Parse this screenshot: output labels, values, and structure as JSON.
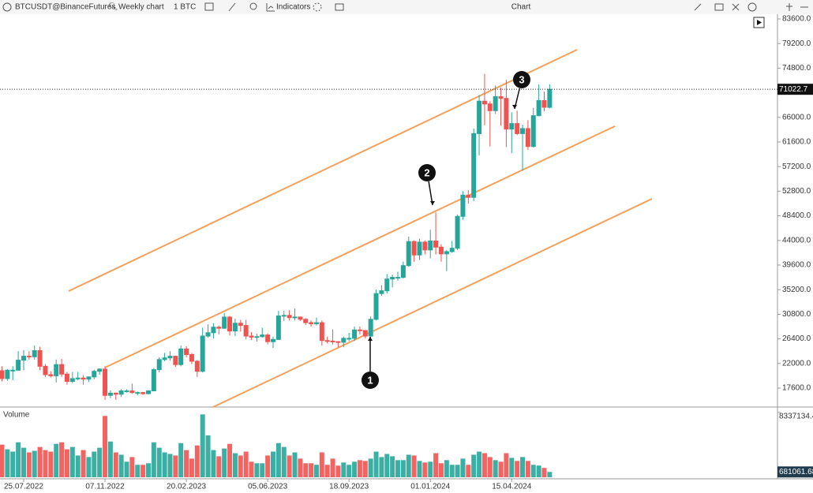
{
  "toolbar": {
    "symbol": "BTCUSDT@BinanceFutures",
    "interval": "Weekly chart",
    "quantity": "1 BTC",
    "indicators": "Indicators",
    "window_title": "Chart"
  },
  "chart_data": {
    "type": "candlestick",
    "categories": [
      null,
      null,
      null,
      null,
      "25.07.2022",
      null,
      null,
      null,
      null,
      null,
      null,
      null,
      null,
      null,
      null,
      null,
      null,
      null,
      null,
      "07.11.2022",
      null,
      null,
      null,
      null,
      null,
      null,
      null,
      null,
      null,
      null,
      null,
      null,
      null,
      null,
      "20.02.2023",
      null,
      null,
      null,
      null,
      null,
      null,
      null,
      null,
      null,
      null,
      null,
      null,
      null,
      null,
      "05.06.2023",
      null,
      null,
      null,
      null,
      null,
      null,
      null,
      null,
      null,
      null,
      null,
      null,
      null,
      null,
      "18.09.2023",
      null,
      null,
      null,
      null,
      null,
      null,
      null,
      null,
      null,
      null,
      null,
      null,
      null,
      null,
      "01.01.2024",
      null,
      null,
      null,
      null,
      null,
      null,
      null,
      null,
      null,
      null,
      null,
      null,
      null,
      null,
      "15.04.2024",
      null,
      null,
      null,
      null,
      null,
      null,
      null
    ],
    "open": [
      20700,
      19300,
      20800,
      20800,
      22600,
      23300,
      23200,
      24300,
      21500,
      20000,
      19800,
      21800,
      20100,
      18800,
      19300,
      19400,
      19200,
      19600,
      20600,
      21000,
      16300,
      16700,
      16500,
      17100,
      17100,
      16800,
      16800,
      16600,
      17100,
      20900,
      22700,
      23000,
      23300,
      21800,
      24600,
      23600,
      22400,
      20600,
      26900,
      27500,
      28500,
      28300,
      30300,
      27800,
      29200,
      28800,
      26900,
      26700,
      26800,
      27100,
      25900,
      26300,
      30500,
      30600,
      30200,
      30300,
      29900,
      29300,
      29100,
      29300,
      26100,
      26000,
      25900,
      25800,
      26500,
      26500,
      28000,
      27900,
      26900,
      29900,
      34500,
      35000,
      37100,
      37400,
      37400,
      39500,
      43800,
      41400,
      43700,
      42300,
      43900,
      42800,
      41600,
      42000,
      42600,
      48300,
      52100,
      51700,
      63100,
      68900,
      68400,
      67200,
      69700,
      69400,
      63900,
      64900,
      63100,
      64000,
      60800,
      66300,
      69000,
      67800
    ],
    "high": [
      21500,
      21000,
      21500,
      24200,
      24400,
      24200,
      25200,
      25000,
      21900,
      20600,
      22700,
      22800,
      20500,
      20500,
      20500,
      19900,
      19700,
      20900,
      21100,
      21500,
      17200,
      16800,
      17400,
      17400,
      18400,
      17000,
      16900,
      17200,
      21200,
      23100,
      23900,
      24200,
      23400,
      25200,
      25100,
      23900,
      22600,
      28400,
      29000,
      29200,
      28800,
      31000,
      30500,
      30000,
      29800,
      29800,
      27600,
      27300,
      28400,
      27400,
      26800,
      31400,
      31400,
      31500,
      31800,
      30400,
      30100,
      29700,
      30200,
      29700,
      26800,
      28100,
      26000,
      26800,
      27500,
      28600,
      28600,
      27900,
      30400,
      35200,
      36000,
      38000,
      37900,
      38400,
      40200,
      44700,
      44000,
      44300,
      44000,
      45900,
      49000,
      43300,
      42300,
      43900,
      48600,
      52800,
      53000,
      64000,
      70000,
      73800,
      68900,
      71700,
      71300,
      72700,
      66900,
      67200,
      64700,
      65500,
      67700,
      71900,
      70600,
      71900
    ],
    "low": [
      18800,
      18900,
      19000,
      20700,
      20800,
      22700,
      22700,
      20800,
      19600,
      19500,
      18600,
      19600,
      18200,
      18500,
      19000,
      18200,
      18700,
      19200,
      20000,
      15500,
      15800,
      15500,
      16000,
      16800,
      16600,
      16300,
      16400,
      16500,
      17100,
      20400,
      22400,
      22500,
      21400,
      21500,
      23100,
      21900,
      19600,
      20400,
      26600,
      26500,
      27200,
      28200,
      27000,
      26900,
      27700,
      26300,
      26200,
      25900,
      26600,
      25400,
      24800,
      26200,
      29600,
      29700,
      29700,
      29600,
      28900,
      28600,
      28800,
      25200,
      25600,
      25400,
      24900,
      24900,
      26000,
      26000,
      27200,
      26500,
      26700,
      29700,
      34100,
      34500,
      35600,
      36800,
      37200,
      39300,
      40200,
      40500,
      41500,
      40800,
      41500,
      40200,
      38500,
      41800,
      42300,
      47700,
      50600,
      51000,
      59200,
      64600,
      60800,
      66600,
      64500,
      60700,
      59600,
      62800,
      56500,
      60200,
      60600,
      66200,
      67100,
      67600
    ],
    "close": [
      19300,
      20800,
      20800,
      22600,
      23300,
      23200,
      24300,
      21500,
      20000,
      19800,
      21800,
      20100,
      18800,
      19300,
      19400,
      19200,
      19600,
      20600,
      21000,
      16300,
      16700,
      16500,
      17100,
      17100,
      16800,
      16800,
      16600,
      17100,
      20900,
      22700,
      23000,
      23300,
      21800,
      24600,
      23600,
      22400,
      20600,
      26900,
      27500,
      28500,
      28300,
      30300,
      27800,
      29200,
      28800,
      26900,
      26700,
      26800,
      27100,
      25900,
      26300,
      30500,
      30600,
      30200,
      30300,
      29900,
      29300,
      29100,
      29300,
      26100,
      26000,
      25900,
      25800,
      26500,
      26500,
      28000,
      27900,
      26900,
      29900,
      34500,
      35000,
      37100,
      37400,
      37400,
      39500,
      43800,
      41400,
      43700,
      42300,
      43900,
      42800,
      41600,
      42000,
      42600,
      48300,
      52100,
      51700,
      63100,
      68900,
      68400,
      67200,
      69700,
      69400,
      63900,
      64900,
      63100,
      64000,
      60800,
      66300,
      69000,
      67800,
      71022.7
    ],
    "up_color": "#26a69a",
    "down_color": "#ef5350",
    "ylim": [
      14357,
      84446
    ],
    "yticks": [
      {
        "value": 83600,
        "label": "83600.0"
      },
      {
        "value": 79200,
        "label": "79200.0"
      },
      {
        "value": 74800,
        "label": "74800.0"
      },
      {
        "value": 66000,
        "label": "66000.0"
      },
      {
        "value": 61600,
        "label": "61600.0"
      },
      {
        "value": 57200,
        "label": "57200.0"
      },
      {
        "value": 52800,
        "label": "52800.0"
      },
      {
        "value": 48400,
        "label": "48400.0"
      },
      {
        "value": 44000,
        "label": "44000.0"
      },
      {
        "value": 39600,
        "label": "39600.0"
      },
      {
        "value": 35200,
        "label": "35200.0"
      },
      {
        "value": 30800,
        "label": "30800.0"
      },
      {
        "value": 26400,
        "label": "26400.0"
      },
      {
        "value": 22000,
        "label": "22000.0"
      },
      {
        "value": 17600,
        "label": "17600.0"
      }
    ],
    "annotations": [
      "1",
      "2",
      "3"
    ],
    "volume": {
      "title": "Volume",
      "values": [
        4200000,
        3600000,
        3300000,
        4500000,
        3800000,
        3200000,
        3400000,
        3900000,
        3500000,
        3300000,
        4300000,
        4500000,
        3600000,
        3900000,
        2800000,
        3500000,
        2600000,
        3300000,
        3800000,
        7900000,
        4600000,
        3200000,
        2900000,
        2000000,
        2600000,
        1600000,
        1600000,
        1800000,
        4500000,
        3800000,
        3200000,
        3000000,
        2800000,
        4400000,
        3500000,
        2400000,
        4100000,
        8100000,
        5400000,
        3500000,
        2700000,
        3700000,
        4300000,
        3100000,
        2800000,
        3300000,
        2000000,
        1800000,
        1800000,
        2800000,
        3300000,
        4400000,
        3900000,
        2800000,
        3200000,
        2400000,
        1800000,
        1800000,
        1600000,
        3200000,
        1600000,
        2400000,
        1500000,
        1900000,
        1600000,
        2000000,
        2200000,
        2100000,
        2400000,
        3300000,
        2600000,
        3000000,
        2700000,
        2200000,
        2200000,
        2900000,
        2800000,
        2100000,
        1900000,
        2000000,
        3100000,
        1800000,
        2200000,
        1600000,
        1600000,
        2400000,
        1600000,
        2900000,
        3300000,
        3100000,
        2600000,
        2200000,
        2000000,
        3100000,
        2500000,
        2100000,
        2600000,
        2100000,
        1600000,
        1500000,
        1200000,
        681061.68
      ],
      "ylim": [
        0,
        8337134.4
      ],
      "yticks": [
        8337134.4
      ]
    }
  }
}
